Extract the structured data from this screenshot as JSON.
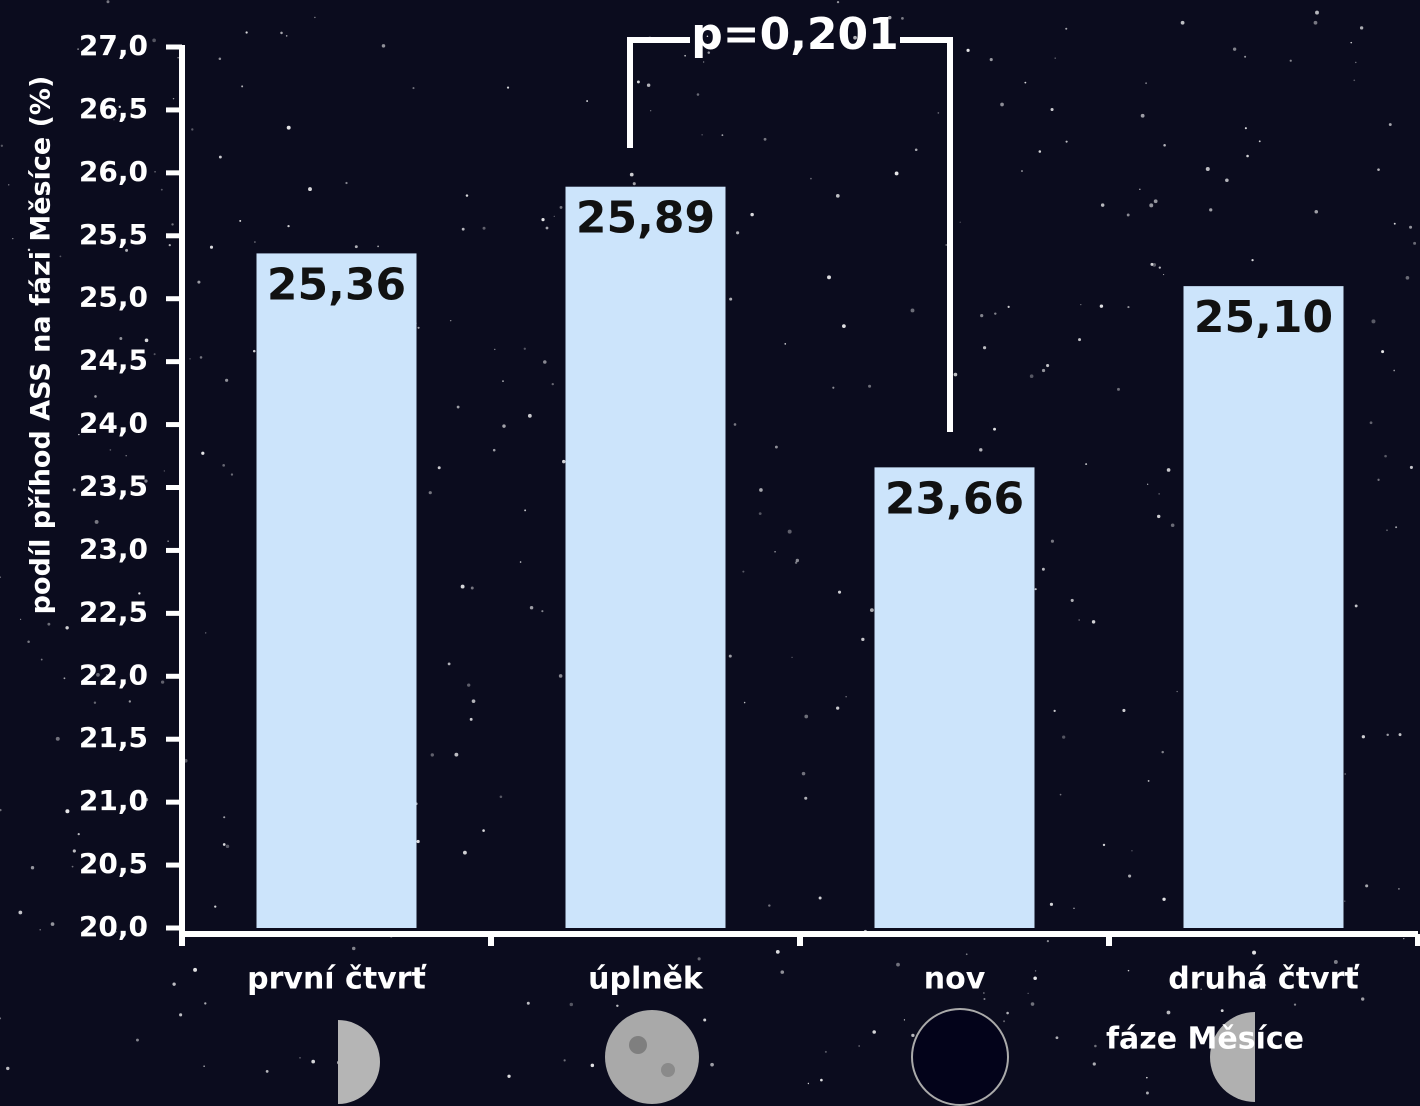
{
  "chart_data": {
    "type": "bar",
    "y_label": "podíl příhod ASS na fázi Měsíce (%)",
    "x_label": "fáze Měsíce",
    "annotation": "p=0,201",
    "categories": [
      "první čtvrť",
      "úplněk",
      "nov",
      "druhá čtvrť"
    ],
    "values": [
      25.36,
      25.89,
      23.66,
      25.1
    ],
    "value_labels": [
      "25,36",
      "25,89",
      "23,66",
      "25,10"
    ],
    "color": "#cce4fb",
    "ylim": [
      20,
      27
    ],
    "yticks": [
      {
        "value": 20,
        "label": "20,0"
      },
      {
        "value": 20.5,
        "label": "20,5"
      },
      {
        "value": 21,
        "label": "21,0"
      },
      {
        "value": 21.5,
        "label": "21,5"
      },
      {
        "value": 22,
        "label": "22,0"
      },
      {
        "value": 22.5,
        "label": "22,5"
      },
      {
        "value": 23,
        "label": "23,0"
      },
      {
        "value": 23.5,
        "label": "23,5"
      },
      {
        "value": 24,
        "label": "24,0"
      },
      {
        "value": 24.5,
        "label": "24,5"
      },
      {
        "value": 25,
        "label": "25,0"
      },
      {
        "value": 25.5,
        "label": "25,5"
      },
      {
        "value": 26,
        "label": "26,0"
      },
      {
        "value": 26.5,
        "label": "26,5"
      },
      {
        "value": 27,
        "label": "27,0"
      }
    ],
    "grid": false
  }
}
